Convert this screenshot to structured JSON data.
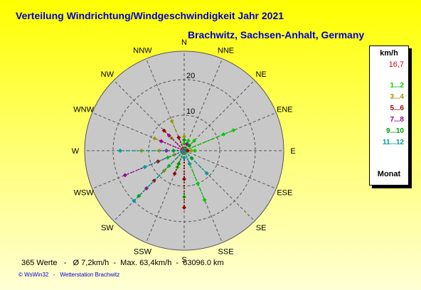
{
  "header": {
    "title": "Verteilung Windrichtung/Windgeschwindigkeit  Jahr 2021",
    "subtitle": "Brachwitz, Sachsen-Anhalt, Germany"
  },
  "legend": {
    "unit": "km/h",
    "max_value": "16,7",
    "max_color": "#e00000",
    "classes": [
      {
        "label": "1...2",
        "color": "#00cc00"
      },
      {
        "label": "3...4",
        "color": "#999900"
      },
      {
        "label": "5...6",
        "color": "#990000"
      },
      {
        "label": "7...8",
        "color": "#990099"
      },
      {
        "label": "9...10",
        "color": "#009900"
      },
      {
        "label": "11...12",
        "color": "#009999"
      }
    ],
    "footer": "Monat"
  },
  "footer": {
    "stats": "365 Werte   -   Ø 7,2km/h  -  Max. 63,4km/h  -  63096.0 km",
    "credit": "© WsWin32   -   Wetterstation Brachwitz"
  },
  "chart_data": {
    "type": "scatter",
    "polar": true,
    "directions": [
      "N",
      "NNE",
      "NE",
      "ENE",
      "E",
      "ESE",
      "SE",
      "SSE",
      "S",
      "SSW",
      "SW",
      "WSW",
      "W",
      "WNW",
      "NW",
      "NNW"
    ],
    "radial_ticks": [
      10,
      20
    ],
    "radial_max": 28,
    "series": [
      {
        "legend_index": 0,
        "points": [
          {
            "dir": "NNE",
            "r": 3
          },
          {
            "dir": "NE",
            "r": 4
          },
          {
            "dir": "ENE",
            "r": 15
          },
          {
            "dir": "ENE",
            "r": 12
          },
          {
            "dir": "SSE",
            "r": 10
          },
          {
            "dir": "SSE",
            "r": 15
          },
          {
            "dir": "S",
            "r": 13
          },
          {
            "dir": "SSW",
            "r": 5
          },
          {
            "dir": "SW",
            "r": 6
          },
          {
            "dir": "WSW",
            "r": 5
          },
          {
            "dir": "E",
            "r": 3
          },
          {
            "dir": "N",
            "r": 2
          }
        ]
      },
      {
        "legend_index": 1,
        "points": [
          {
            "dir": "NNW",
            "r": 9
          },
          {
            "dir": "NW",
            "r": 5
          },
          {
            "dir": "WNW",
            "r": 9
          },
          {
            "dir": "W",
            "r": 7
          },
          {
            "dir": "W",
            "r": 12
          },
          {
            "dir": "WSW",
            "r": 3
          },
          {
            "dir": "SW",
            "r": 8
          },
          {
            "dir": "E",
            "r": 2
          },
          {
            "dir": "N",
            "r": 4
          }
        ]
      },
      {
        "legend_index": 2,
        "points": [
          {
            "dir": "NW",
            "r": 8
          },
          {
            "dir": "SW",
            "r": 12
          },
          {
            "dir": "S",
            "r": 8
          },
          {
            "dir": "S",
            "r": 16
          },
          {
            "dir": "SSW",
            "r": 7
          },
          {
            "dir": "NNW",
            "r": 4
          },
          {
            "dir": "E",
            "r": 1
          },
          {
            "dir": "WSW",
            "r": 8
          }
        ]
      },
      {
        "legend_index": 3,
        "points": [
          {
            "dir": "WSW",
            "r": 18
          },
          {
            "dir": "NW",
            "r": 6
          },
          {
            "dir": "W",
            "r": 5
          },
          {
            "dir": "SW",
            "r": 15
          },
          {
            "dir": "WNW",
            "r": 7
          },
          {
            "dir": "NNE",
            "r": 2
          }
        ]
      },
      {
        "legend_index": 4,
        "points": [
          {
            "dir": "SW",
            "r": 18
          },
          {
            "dir": "SSW",
            "r": 4
          },
          {
            "dir": "N",
            "r": 3
          },
          {
            "dir": "NE",
            "r": 2
          },
          {
            "dir": "SE",
            "r": 3
          },
          {
            "dir": "W",
            "r": 3
          }
        ]
      },
      {
        "legend_index": 5,
        "points": [
          {
            "dir": "SW",
            "r": 20
          },
          {
            "dir": "W",
            "r": 18
          },
          {
            "dir": "SE",
            "r": 9
          },
          {
            "dir": "SSE",
            "r": 4
          },
          {
            "dir": "WSW",
            "r": 12
          },
          {
            "dir": "S",
            "r": 2
          }
        ]
      }
    ]
  }
}
